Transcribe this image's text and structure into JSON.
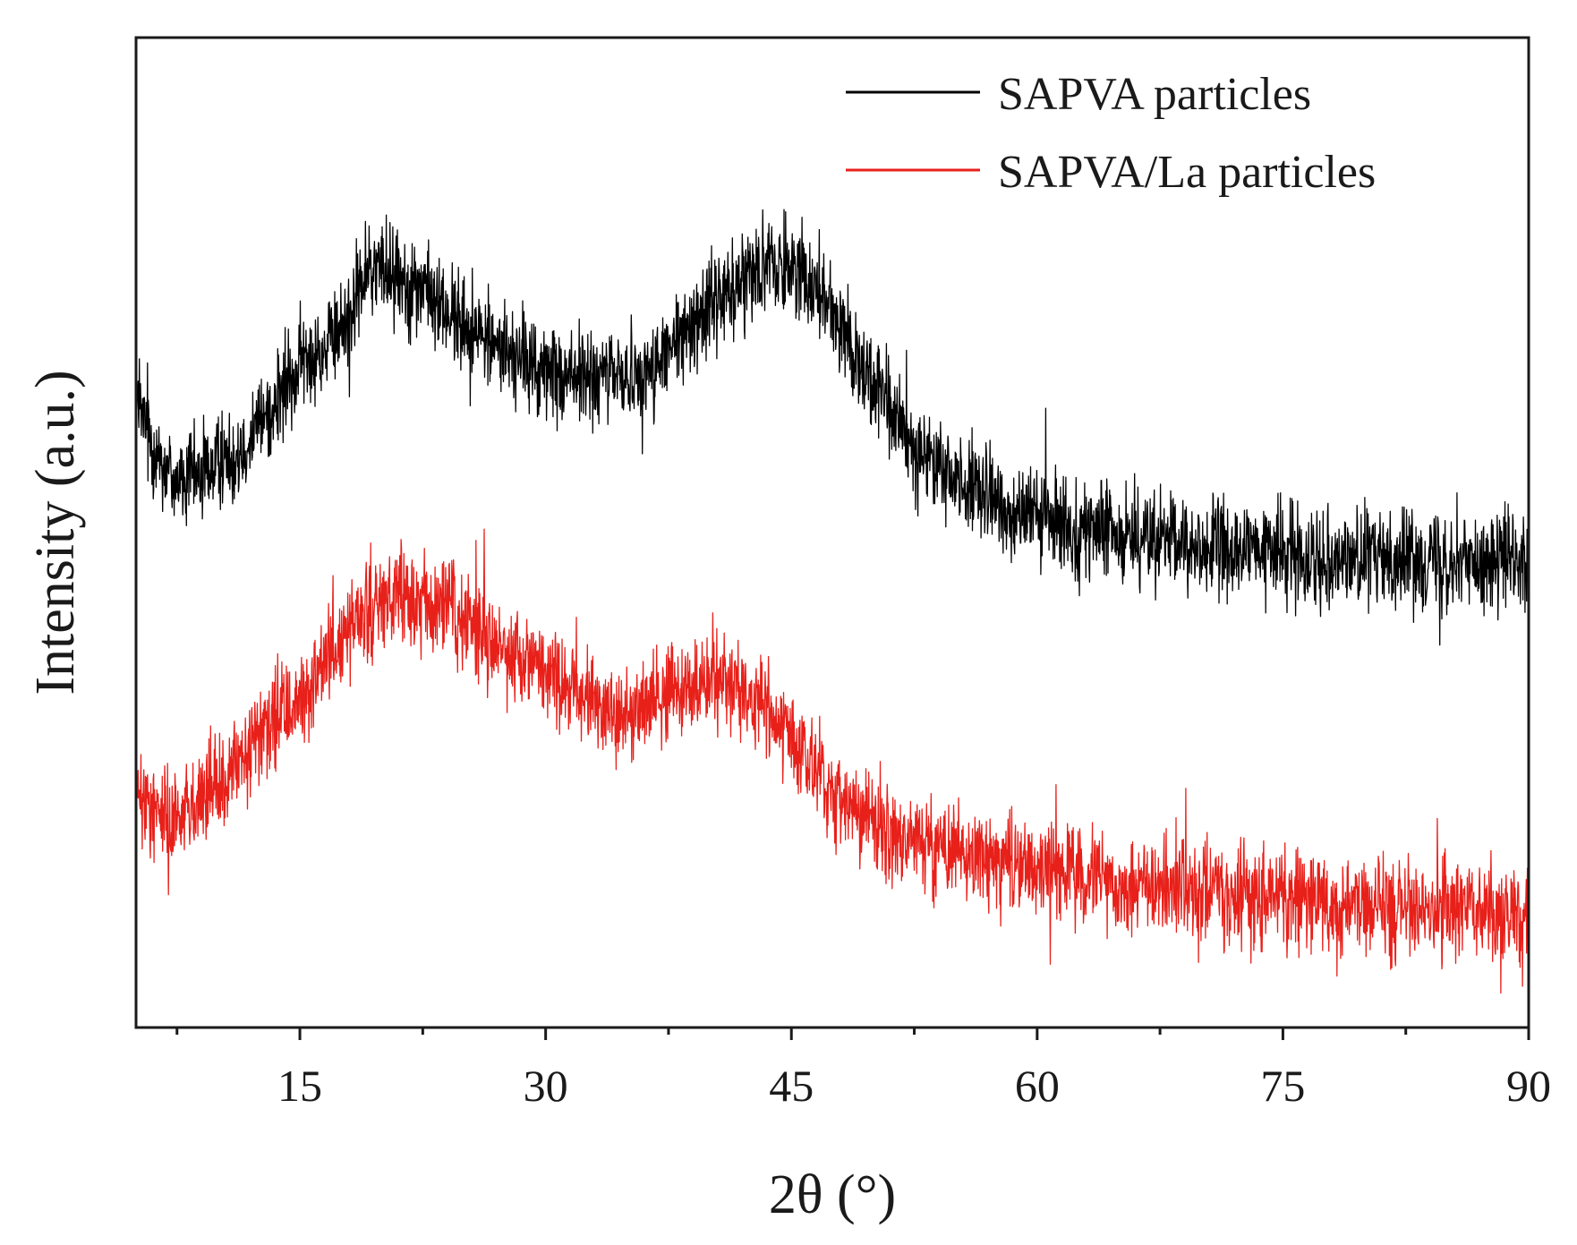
{
  "chart_data": {
    "type": "line",
    "title": "",
    "xlabel": "2θ (°)",
    "ylabel": "Intensity (a.u.)",
    "xlim": [
      5,
      90
    ],
    "ylim": [
      0,
      100
    ],
    "xticks": [
      15,
      30,
      45,
      60,
      75,
      90
    ],
    "xtick_labels": [
      "15",
      "30",
      "45",
      "60",
      "75",
      "90"
    ],
    "minor_xticks": [
      7.5,
      22.5,
      37.5,
      52.5,
      67.5,
      82.5
    ],
    "yticks_shown": false,
    "legend_position": "top-right",
    "series": [
      {
        "name": "SAPVA particles",
        "color": "#000000",
        "noise": 4.5,
        "x": [
          5,
          6,
          7,
          8,
          9,
          10,
          11,
          12,
          13,
          14,
          15,
          16,
          17,
          18,
          19,
          20,
          21,
          22,
          23,
          24,
          25,
          26,
          27,
          28,
          29,
          30,
          31,
          32,
          33,
          34,
          35,
          36,
          37,
          38,
          39,
          40,
          41,
          42,
          43,
          44,
          45,
          46,
          47,
          48,
          49,
          50,
          51,
          52,
          53,
          54,
          55,
          56,
          57,
          58,
          59,
          60,
          62,
          64,
          66,
          68,
          70,
          72,
          74,
          76,
          78,
          80,
          82,
          84,
          86,
          88,
          90
        ],
        "y": [
          63,
          59,
          56,
          55,
          56,
          57,
          58,
          60,
          62,
          64,
          67,
          68,
          69,
          72,
          76,
          77,
          76,
          75,
          74,
          72,
          71,
          70,
          69,
          68,
          67,
          66,
          66,
          66,
          65,
          66,
          66,
          66,
          67,
          69,
          71,
          73,
          74,
          76,
          77,
          77,
          77,
          76,
          74,
          71,
          68,
          65,
          62,
          60,
          58,
          56.5,
          55.5,
          54.5,
          53.5,
          52.5,
          52,
          51.5,
          50.5,
          50,
          49.5,
          49,
          48.5,
          48,
          48,
          48,
          47.5,
          47.5,
          47.5,
          47.5,
          47,
          47,
          47
        ]
      },
      {
        "name": "SAPVA/La particles",
        "color": "#e8201a",
        "noise": 4.5,
        "x": [
          5,
          6,
          7,
          8,
          9,
          10,
          11,
          12,
          13,
          14,
          15,
          16,
          17,
          18,
          19,
          20,
          21,
          22,
          23,
          24,
          25,
          26,
          27,
          28,
          29,
          30,
          31,
          32,
          33,
          34,
          35,
          36,
          37,
          38,
          39,
          40,
          41,
          42,
          43,
          44,
          45,
          46,
          47,
          48,
          49,
          50,
          51,
          52,
          53,
          54,
          55,
          56,
          57,
          58,
          59,
          60,
          62,
          64,
          66,
          68,
          70,
          72,
          74,
          76,
          78,
          80,
          82,
          84,
          86,
          88,
          90
        ],
        "y": [
          23,
          22,
          21.5,
          22,
          23,
          24,
          26,
          28,
          30,
          32,
          33,
          35,
          38,
          40,
          42,
          43,
          43,
          43,
          43,
          42,
          41,
          40,
          39,
          38,
          37,
          36,
          35,
          34,
          33,
          32,
          32,
          33,
          33,
          34,
          34.5,
          35,
          34.5,
          34,
          33,
          31,
          29,
          27,
          25,
          23.5,
          22,
          21,
          20,
          19,
          18.5,
          18,
          17.5,
          17,
          17,
          16.5,
          16,
          16,
          15.5,
          15,
          14.5,
          14,
          13.5,
          13.5,
          13,
          13,
          12.5,
          12.5,
          12,
          12,
          12,
          11.5,
          11
        ]
      }
    ]
  }
}
